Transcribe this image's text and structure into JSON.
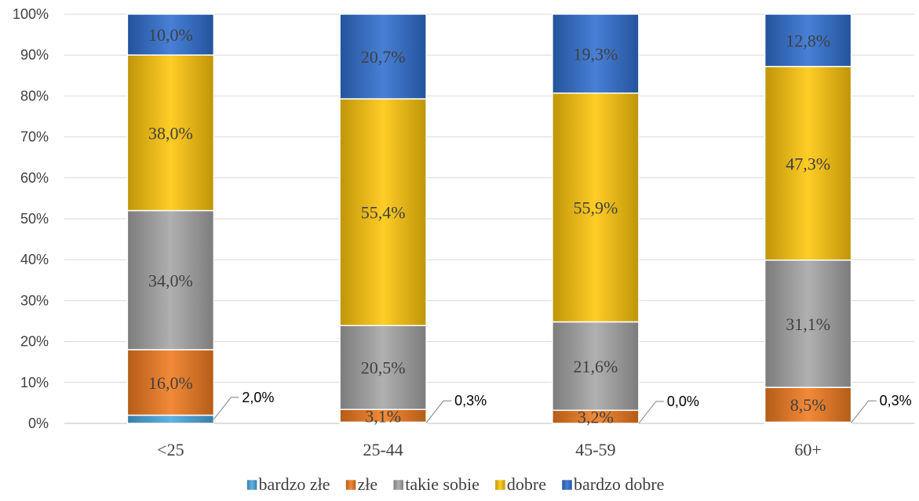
{
  "chart_data": {
    "type": "bar",
    "stacked": true,
    "percent_stacked": true,
    "categories": [
      "<25",
      "25-44",
      "45-59",
      "60+"
    ],
    "ylim": [
      0,
      100
    ],
    "y_ticks": [
      "0%",
      "10%",
      "20%",
      "30%",
      "40%",
      "50%",
      "60%",
      "70%",
      "80%",
      "90%",
      "100%"
    ],
    "grid": true,
    "legend_position": "bottom",
    "series": [
      {
        "name": "bardzo złe",
        "color": "#4aa8e0",
        "values": [
          2.0,
          0.3,
          0.0,
          0.3
        ],
        "labels": [
          "2,0%",
          "0,3%",
          "0,0%",
          "0,3%"
        ],
        "label_style": "callout"
      },
      {
        "name": "złe",
        "color": "#f07a1e",
        "values": [
          16.0,
          3.1,
          3.2,
          8.5
        ],
        "labels": [
          "16,0%",
          "3,1%",
          "3,2%",
          "8,5%"
        ],
        "label_style": "inside"
      },
      {
        "name": "takie sobie",
        "color": "#a5a5a5",
        "values": [
          34.0,
          20.5,
          21.6,
          31.1
        ],
        "labels": [
          "34,0%",
          "20,5%",
          "21,6%",
          "31,1%"
        ],
        "label_style": "inside"
      },
      {
        "name": "dobre",
        "color": "#ffc60a",
        "values": [
          38.0,
          55.4,
          55.9,
          47.3
        ],
        "labels": [
          "38,0%",
          "55,4%",
          "55,9%",
          "47,3%"
        ],
        "label_style": "inside"
      },
      {
        "name": "bardzo dobre",
        "color": "#2f6fd0",
        "values": [
          10.0,
          20.7,
          19.3,
          12.8
        ],
        "labels": [
          "10,0%",
          "20,7%",
          "19,3%",
          "12,8%"
        ],
        "label_style": "inside"
      }
    ]
  }
}
